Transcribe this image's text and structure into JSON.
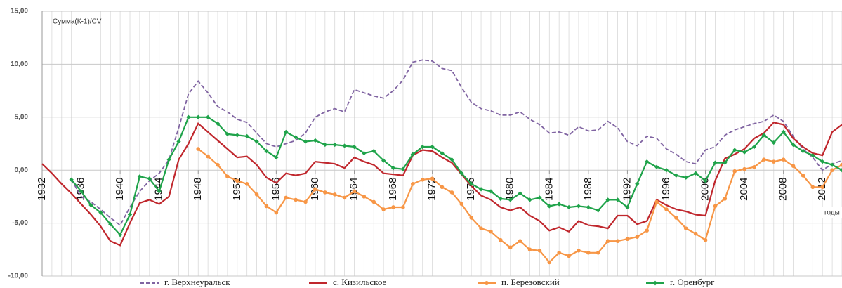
{
  "chart_data": {
    "type": "line",
    "y_label": "Сумма(К-1)/CV",
    "x_label": "годы",
    "x": [
      1932,
      1933,
      1934,
      1935,
      1936,
      1937,
      1938,
      1939,
      1940,
      1941,
      1942,
      1943,
      1944,
      1945,
      1946,
      1947,
      1948,
      1949,
      1950,
      1951,
      1952,
      1953,
      1954,
      1955,
      1956,
      1957,
      1958,
      1959,
      1960,
      1961,
      1962,
      1963,
      1964,
      1965,
      1966,
      1967,
      1968,
      1969,
      1970,
      1971,
      1972,
      1973,
      1974,
      1975,
      1976,
      1977,
      1978,
      1979,
      1980,
      1981,
      1982,
      1983,
      1984,
      1985,
      1986,
      1987,
      1988,
      1989,
      1990,
      1991,
      1992,
      1993,
      1994,
      1995,
      1996,
      1997,
      1998,
      1999,
      2000,
      2001,
      2002,
      2003,
      2004,
      2005,
      2006,
      2007,
      2008,
      2009,
      2010,
      2011,
      2012,
      2013,
      2014
    ],
    "xlim": [
      1932,
      2014
    ],
    "xticks": [
      1932,
      1936,
      1940,
      1944,
      1948,
      1952,
      1956,
      1960,
      1964,
      1968,
      1972,
      1976,
      1980,
      1984,
      1988,
      1992,
      1996,
      2000,
      2004,
      2008,
      2012
    ],
    "ylim": [
      -10,
      15
    ],
    "yticks": [
      {
        "value": -10,
        "label": "-10,00"
      },
      {
        "value": -5,
        "label": "-5,00"
      },
      {
        "value": 0,
        "label": "0,00"
      },
      {
        "value": 5,
        "label": "5,00"
      },
      {
        "value": 10,
        "label": "10,00"
      },
      {
        "value": 15,
        "label": "15,00"
      }
    ],
    "grid": true,
    "legend": "bottom",
    "series": [
      {
        "name": "г. Верхнеуральск",
        "color": "#8064a2",
        "dash": true,
        "values": [
          null,
          null,
          null,
          -0.9,
          -2.5,
          -3,
          -3.7,
          -4.5,
          -5.2,
          -3.5,
          -2,
          -1,
          -0.3,
          1,
          4,
          7.2,
          8.4,
          7.3,
          6,
          5.5,
          4.8,
          4.5,
          3.5,
          2.5,
          2.2,
          2.5,
          2.8,
          3.5,
          5,
          5.5,
          5.8,
          5.5,
          7.6,
          7.3,
          7,
          6.8,
          7.5,
          8.5,
          10.2,
          10.4,
          10.3,
          9.6,
          9.4,
          7.8,
          6.4,
          5.8,
          5.6,
          5.2,
          5.2,
          5.5,
          4.8,
          4.3,
          3.5,
          3.6,
          3.3,
          4.1,
          3.7,
          3.8,
          4.6,
          4,
          2.7,
          2.3,
          3.2,
          3,
          2,
          1.5,
          0.8,
          0.6,
          1.9,
          2.2,
          3.3,
          3.8,
          4.1,
          4.4,
          4.6,
          5.2,
          4.6,
          3.2,
          2,
          1.2,
          0,
          0.6,
          0.9
        ]
      },
      {
        "name": "с. Кизильское",
        "color": "#c0272d",
        "values": [
          0.6,
          -0.3,
          -1.3,
          -2.2,
          -3.2,
          -4.2,
          -5.3,
          -6.7,
          -7.1,
          -5,
          -3.1,
          -2.8,
          -3.2,
          -2.5,
          1,
          2.5,
          4.4,
          3.6,
          2.8,
          2,
          1.2,
          1.3,
          0.5,
          -0.7,
          -1.2,
          -0.3,
          -0.5,
          -0.3,
          0.8,
          0.7,
          0.6,
          0.2,
          1.2,
          0.8,
          0.5,
          -0.3,
          -0.4,
          -0.5,
          1.4,
          1.9,
          1.8,
          1.2,
          0.7,
          -0.4,
          -1.5,
          -2.4,
          -2.8,
          -3.5,
          -3.8,
          -3.5,
          -4.3,
          -4.8,
          -5.7,
          -5.4,
          -5.8,
          -4.8,
          -5.2,
          -5.3,
          -5.5,
          -4.3,
          -4.3,
          -5.1,
          -4.8,
          -2.8,
          -3.3,
          -3.7,
          -3.9,
          -4.2,
          -4.3,
          -1,
          1.1,
          1.5,
          2,
          3,
          3.5,
          4.5,
          4.3,
          3,
          2.2,
          1.6,
          1.4,
          3.6,
          4.3
        ]
      },
      {
        "name": "п. Березовский",
        "color": "#f79646",
        "marker": "circle",
        "values": [
          null,
          null,
          null,
          null,
          null,
          null,
          null,
          null,
          null,
          null,
          null,
          null,
          null,
          null,
          null,
          null,
          2,
          1.3,
          0.5,
          -0.6,
          -1,
          -1.3,
          -2.3,
          -3.4,
          -4,
          -2.6,
          -2.8,
          -3,
          -1.8,
          -2.1,
          -2.3,
          -2.6,
          -2,
          -2.5,
          -3,
          -3.7,
          -3.5,
          -3.5,
          -1.3,
          -0.9,
          -0.8,
          -1.6,
          -2.1,
          -3.2,
          -4.5,
          -5.5,
          -5.8,
          -6.6,
          -7.3,
          -6.7,
          -7.5,
          -7.6,
          -8.7,
          -7.8,
          -8.1,
          -7.6,
          -7.8,
          -7.8,
          -6.7,
          -6.7,
          -6.5,
          -6.3,
          -5.7,
          -3,
          -3.7,
          -4.5,
          -5.5,
          -6,
          -6.6,
          -3.4,
          -2.7,
          -0.1,
          0.1,
          0.3,
          1,
          0.8,
          1,
          0.4,
          -0.5,
          -1.6,
          -1.6,
          0,
          0.5
        ]
      },
      {
        "name": "г. Оренбург",
        "color": "#1fa34a",
        "marker": "diamond",
        "values": [
          null,
          null,
          null,
          -0.9,
          -2,
          -3.3,
          -4,
          -5.1,
          -6.1,
          -4.2,
          -0.6,
          -0.8,
          -2,
          1,
          2.7,
          5,
          5,
          5,
          4.4,
          3.4,
          3.3,
          3.2,
          2.7,
          1.8,
          1.2,
          3.6,
          3.1,
          2.7,
          2.8,
          2.4,
          2.4,
          2.3,
          2.2,
          1.6,
          1.8,
          0.9,
          0.2,
          0.1,
          1.5,
          2.2,
          2.2,
          1.6,
          1,
          -0.3,
          -1.3,
          -1.8,
          -2,
          -2.7,
          -2.8,
          -2.2,
          -2.8,
          -2.6,
          -3.4,
          -3.2,
          -3.5,
          -3.4,
          -3.5,
          -3.8,
          -2.8,
          -2.8,
          -3.5,
          -1.3,
          0.8,
          0.3,
          0,
          -0.5,
          -0.7,
          -0.3,
          -1,
          0.7,
          0.7,
          1.9,
          1.7,
          2.2,
          3.3,
          2.6,
          3.6,
          2.4,
          1.8,
          1.4,
          0.8,
          0.5,
          0
        ]
      }
    ]
  }
}
